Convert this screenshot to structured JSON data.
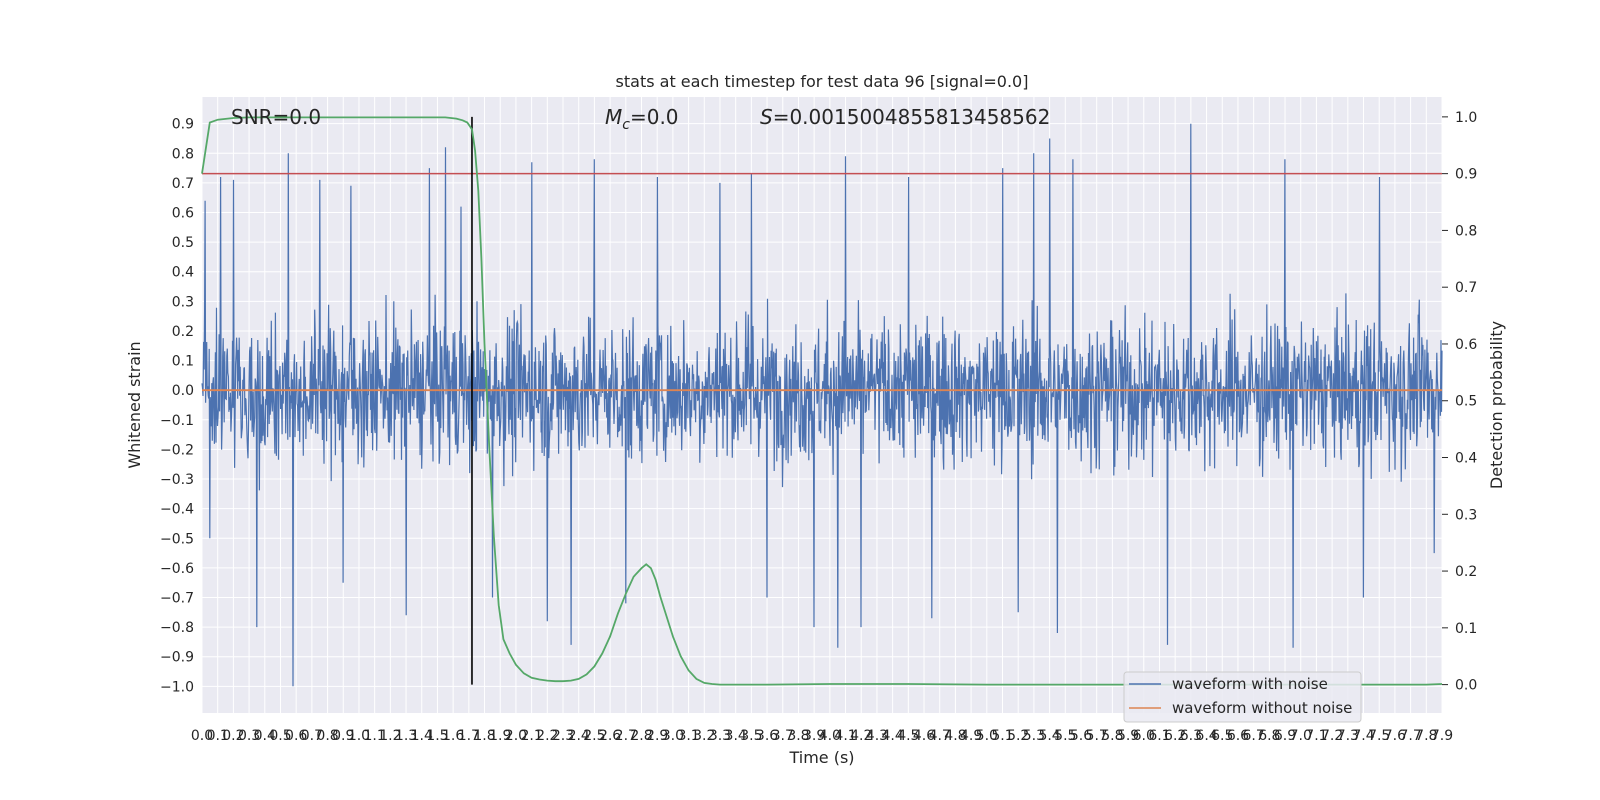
{
  "chart_data": {
    "type": "line",
    "title": "stats at each timestep for test data 96 [signal=0.0]",
    "xlabel": "Time (s)",
    "ylabel": "Whitened strain",
    "y2label": "Detection probability",
    "xlim": [
      0.0,
      7.9
    ],
    "ylim": [
      -1.09,
      0.99
    ],
    "y2lim": [
      -0.05,
      1.035
    ],
    "x_ticks": [
      "0.0",
      "0.1",
      "0.2",
      "0.3",
      "0.4",
      "0.5",
      "0.6",
      "0.7",
      "0.8",
      "0.9",
      "1.0",
      "1.1",
      "1.2",
      "1.3",
      "1.4",
      "1.5",
      "1.6",
      "1.7",
      "1.8",
      "1.9",
      "2.0",
      "2.1",
      "2.2",
      "2.3",
      "2.4",
      "2.5",
      "2.6",
      "2.7",
      "2.8",
      "2.9",
      "3.0",
      "3.1",
      "3.2",
      "3.3",
      "3.4",
      "3.5",
      "3.6",
      "3.7",
      "3.8",
      "3.9",
      "4.0",
      "4.1",
      "4.2",
      "4.3",
      "4.4",
      "4.5",
      "4.6",
      "4.7",
      "4.8",
      "4.9",
      "5.0",
      "5.1",
      "5.2",
      "5.3",
      "5.4",
      "5.5",
      "5.6",
      "5.7",
      "5.8",
      "5.9",
      "6.0",
      "6.1",
      "6.2",
      "6.3",
      "6.4",
      "6.5",
      "6.6",
      "6.7",
      "6.8",
      "6.9",
      "7.0",
      "7.1",
      "7.2",
      "7.3",
      "7.4",
      "7.5",
      "7.6",
      "7.7",
      "7.8",
      "7.9"
    ],
    "y_ticks": [
      "0.9",
      "0.8",
      "0.7",
      "0.6",
      "0.5",
      "0.4",
      "0.3",
      "0.2",
      "0.1",
      "0.0",
      "−0.1",
      "−0.2",
      "−0.3",
      "−0.4",
      "−0.5",
      "−0.6",
      "−0.7",
      "−0.8",
      "−0.9",
      "−1.0"
    ],
    "y2_ticks": [
      "1.0",
      "0.9",
      "0.8",
      "0.7",
      "0.6",
      "0.5",
      "0.4",
      "0.3",
      "0.2",
      "0.1",
      "0.0"
    ],
    "annotations": {
      "snr": "SNR=0.0",
      "mc_symbol": "M",
      "mc_sub": "c",
      "mc_value": "=0.0",
      "s_symbol": "S",
      "s_value": "=0.0015004855813458562"
    },
    "threshold_y2": 0.9,
    "marker_x": 1.72,
    "legend_position": "bottom-right",
    "series": [
      {
        "name": "waveform with noise",
        "color": "#4c72b0",
        "axis": "left",
        "envelope_note": "dense noise trace between about -1.0 and 0.9",
        "peaks_upper": [
          [
            0.02,
            0.64
          ],
          [
            0.12,
            0.72
          ],
          [
            0.2,
            0.71
          ],
          [
            0.35,
            0.6
          ],
          [
            0.55,
            0.8
          ],
          [
            0.75,
            0.71
          ],
          [
            0.95,
            0.69
          ],
          [
            1.3,
            0.72
          ],
          [
            1.45,
            0.75
          ],
          [
            1.55,
            0.82
          ],
          [
            1.65,
            0.62
          ],
          [
            2.1,
            0.77
          ],
          [
            2.5,
            0.78
          ],
          [
            2.9,
            0.72
          ],
          [
            3.3,
            0.7
          ],
          [
            3.5,
            0.73
          ],
          [
            4.1,
            0.79
          ],
          [
            4.5,
            0.72
          ],
          [
            5.1,
            0.75
          ],
          [
            5.3,
            0.8
          ],
          [
            5.4,
            0.85
          ],
          [
            5.55,
            0.78
          ],
          [
            6.3,
            0.9
          ],
          [
            6.9,
            0.78
          ],
          [
            7.5,
            0.72
          ],
          [
            7.85,
            0.66
          ]
        ],
        "peaks_lower": [
          [
            0.05,
            -0.5
          ],
          [
            0.35,
            -0.8
          ],
          [
            0.58,
            -1.0
          ],
          [
            0.9,
            -0.65
          ],
          [
            1.3,
            -0.76
          ],
          [
            1.85,
            -0.7
          ],
          [
            2.2,
            -0.78
          ],
          [
            2.35,
            -0.86
          ],
          [
            2.7,
            -0.72
          ],
          [
            3.6,
            -0.7
          ],
          [
            3.9,
            -0.8
          ],
          [
            4.05,
            -0.87
          ],
          [
            4.2,
            -0.8
          ],
          [
            4.65,
            -0.77
          ],
          [
            5.2,
            -0.75
          ],
          [
            5.45,
            -0.82
          ],
          [
            6.15,
            -0.86
          ],
          [
            6.95,
            -0.87
          ],
          [
            7.4,
            -0.7
          ],
          [
            7.85,
            -0.55
          ]
        ]
      },
      {
        "name": "waveform without noise",
        "color": "#dd8452",
        "axis": "left",
        "x": [
          0.0,
          7.9
        ],
        "y": [
          0.0,
          0.0
        ]
      },
      {
        "name": "",
        "color": "#55a868",
        "axis": "right",
        "x": [
          0.0,
          0.05,
          0.1,
          0.2,
          0.3,
          0.5,
          0.8,
          1.0,
          1.2,
          1.4,
          1.55,
          1.62,
          1.66,
          1.69,
          1.72,
          1.74,
          1.76,
          1.78,
          1.8,
          1.83,
          1.86,
          1.89,
          1.92,
          1.96,
          2.0,
          2.05,
          2.1,
          2.15,
          2.2,
          2.25,
          2.3,
          2.35,
          2.4,
          2.45,
          2.5,
          2.55,
          2.6,
          2.65,
          2.7,
          2.75,
          2.8,
          2.83,
          2.86,
          2.89,
          2.92,
          2.96,
          3.0,
          3.05,
          3.1,
          3.15,
          3.2,
          3.25,
          3.3,
          3.4,
          3.6,
          4.0,
          4.5,
          5.0,
          5.5,
          6.0,
          6.5,
          7.0,
          7.5,
          7.8,
          7.9
        ],
        "y": [
          0.9,
          0.99,
          0.995,
          0.998,
          0.999,
          0.999,
          0.999,
          0.999,
          0.999,
          0.999,
          0.999,
          0.997,
          0.994,
          0.99,
          0.978,
          0.94,
          0.87,
          0.75,
          0.6,
          0.42,
          0.26,
          0.14,
          0.08,
          0.055,
          0.035,
          0.02,
          0.012,
          0.009,
          0.007,
          0.006,
          0.006,
          0.007,
          0.01,
          0.018,
          0.032,
          0.055,
          0.085,
          0.125,
          0.16,
          0.19,
          0.205,
          0.212,
          0.205,
          0.185,
          0.155,
          0.12,
          0.085,
          0.05,
          0.025,
          0.01,
          0.003,
          0.001,
          0.0,
          0.0,
          0.0,
          0.001,
          0.001,
          0.0,
          0.0,
          0.0,
          0.0,
          0.0,
          0.0,
          0.0,
          0.001
        ]
      }
    ]
  }
}
